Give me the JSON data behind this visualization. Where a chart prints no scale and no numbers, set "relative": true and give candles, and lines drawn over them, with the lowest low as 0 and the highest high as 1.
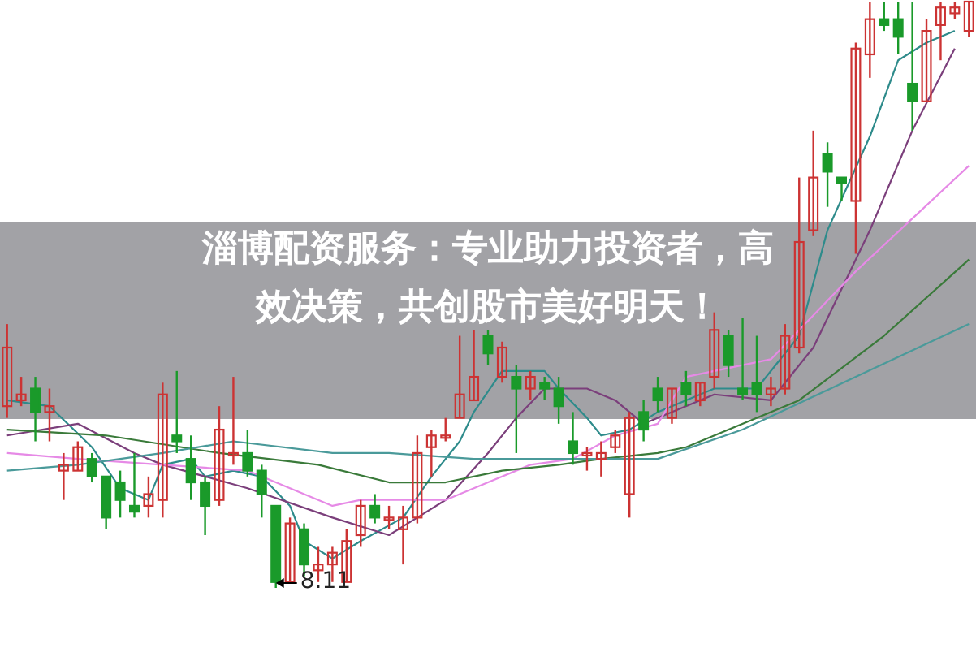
{
  "chart_data": {
    "type": "candlestick",
    "relative": true,
    "title": "淄博配资服务：专业助力投资者，高效决策，共创股市美好明天！",
    "annotations": [
      "8.11"
    ],
    "categories": [
      null,
      null,
      null,
      null,
      null,
      null,
      null,
      null,
      null,
      null,
      null,
      null,
      null,
      null,
      null,
      null,
      null,
      null,
      null,
      null,
      null,
      null,
      null,
      null,
      null,
      null,
      null,
      null,
      null,
      null,
      null,
      null,
      null,
      null,
      null,
      null,
      null,
      null,
      null,
      null,
      null,
      null,
      null,
      null,
      null,
      null,
      null,
      null,
      null,
      null,
      null,
      null,
      null,
      null,
      null,
      null,
      null,
      null,
      null,
      null,
      null,
      null,
      null,
      null,
      null,
      null,
      null,
      null,
      null
    ],
    "ohlc": [
      [
        0.31,
        0.45,
        0.29,
        0.41
      ],
      [
        0.32,
        0.36,
        0.31,
        0.33
      ],
      [
        0.34,
        0.36,
        0.25,
        0.3
      ],
      [
        0.3,
        0.34,
        0.25,
        0.31
      ],
      [
        0.2,
        0.23,
        0.15,
        0.21
      ],
      [
        0.2,
        0.25,
        0.2,
        0.24
      ],
      [
        0.22,
        0.23,
        0.18,
        0.19
      ],
      [
        0.19,
        0.19,
        0.1,
        0.12
      ],
      [
        0.18,
        0.2,
        0.12,
        0.15
      ],
      [
        0.14,
        0.23,
        0.12,
        0.13
      ],
      [
        0.14,
        0.19,
        0.12,
        0.16
      ],
      [
        0.15,
        0.35,
        0.12,
        0.33
      ],
      [
        0.26,
        0.37,
        0.23,
        0.25
      ],
      [
        0.22,
        0.26,
        0.15,
        0.18
      ],
      [
        0.18,
        0.19,
        0.09,
        0.14
      ],
      [
        0.15,
        0.31,
        0.14,
        0.27
      ],
      [
        0.23,
        0.36,
        0.21,
        0.23
      ],
      [
        0.23,
        0.27,
        0.19,
        0.2
      ],
      [
        0.2,
        0.21,
        0.12,
        0.16
      ],
      [
        0.14,
        0.14,
        0,
        0.01
      ],
      [
        0.01,
        0.12,
        0.01,
        0.11
      ],
      [
        0.1,
        0.11,
        0.02,
        0.04
      ],
      [
        0.03,
        0.07,
        0.01,
        0.04
      ],
      [
        0.04,
        0.07,
        0.01,
        0.06
      ],
      [
        0.01,
        0.1,
        0.01,
        0.08
      ],
      [
        0.09,
        0.15,
        0.07,
        0.14
      ],
      [
        0.14,
        0.16,
        0.11,
        0.12
      ],
      [
        0.12,
        0.14,
        0.1,
        0.12
      ],
      [
        0.1,
        0.14,
        0.04,
        0.12
      ],
      [
        0.12,
        0.26,
        0.11,
        0.23
      ],
      [
        0.24,
        0.27,
        0.19,
        0.26
      ],
      [
        0.26,
        0.29,
        0.25,
        0.26
      ],
      [
        0.29,
        0.43,
        0.29,
        0.33
      ],
      [
        0.32,
        0.44,
        0.32,
        0.36
      ],
      [
        0.43,
        0.44,
        0.38,
        0.4
      ],
      [
        0.36,
        0.42,
        0.35,
        0.41
      ],
      [
        0.36,
        0.38,
        0.23,
        0.34
      ],
      [
        0.34,
        0.37,
        0.32,
        0.36
      ],
      [
        0.35,
        0.36,
        0.32,
        0.34
      ],
      [
        0.34,
        0.36,
        0.28,
        0.31
      ],
      [
        0.25,
        0.3,
        0.21,
        0.23
      ],
      [
        0.23,
        0.24,
        0.2,
        0.23
      ],
      [
        0.22,
        0.25,
        0.19,
        0.23
      ],
      [
        0.24,
        0.27,
        0.23,
        0.26
      ],
      [
        0.16,
        0.3,
        0.12,
        0.29
      ],
      [
        0.3,
        0.32,
        0.25,
        0.27
      ],
      [
        0.34,
        0.36,
        0.3,
        0.32
      ],
      [
        0.29,
        0.34,
        0.28,
        0.34
      ],
      [
        0.35,
        0.37,
        0.31,
        0.33
      ],
      [
        0.32,
        0.35,
        0.31,
        0.35
      ],
      [
        0.36,
        0.47,
        0.34,
        0.44
      ],
      [
        0.43,
        0.44,
        0.36,
        0.38
      ],
      [
        0.34,
        0.46,
        0.32,
        0.33
      ],
      [
        0.35,
        0.43,
        0.3,
        0.33
      ],
      [
        0.33,
        0.36,
        0.31,
        0.34
      ],
      [
        0.34,
        0.45,
        0.33,
        0.43
      ],
      [
        0.41,
        0.7,
        0.4,
        0.59
      ],
      [
        0.61,
        0.78,
        0.6,
        0.7
      ],
      [
        0.74,
        0.76,
        0.65,
        0.71
      ],
      [
        0.7,
        0.7,
        0.66,
        0.69
      ],
      [
        0.66,
        0.93,
        0.57,
        0.92
      ],
      [
        0.91,
        1,
        0.87,
        0.97
      ],
      [
        0.97,
        1,
        0.95,
        0.96
      ],
      [
        0.97,
        1,
        0.91,
        0.94
      ],
      [
        0.86,
        1,
        0.78,
        0.83
      ],
      [
        0.83,
        0.97,
        0.83,
        0.95
      ],
      [
        0.96,
        1,
        0.9,
        0.99
      ],
      [
        0.98,
        1,
        0.97,
        0.99
      ],
      [
        0.95,
        1,
        0.94,
        1
      ]
    ],
    "series": [
      {
        "type": "line",
        "color": "#2e8b8b",
        "values": [
          0.32,
          null,
          null,
          0.31,
          null,
          null,
          0.24,
          null,
          0.17,
          null,
          0.15,
          0.21,
          null,
          0.22,
          0.19,
          null,
          0.2,
          null,
          0.19,
          null,
          0.14,
          0.08,
          null,
          0.05,
          null,
          0.08,
          null,
          null,
          0.12,
          null,
          0.19,
          null,
          0.25,
          0.3,
          null,
          0.37,
          null,
          null,
          0.37,
          0.34,
          null,
          0.29,
          0.26,
          null,
          0.27,
          null,
          0.3,
          null,
          null,
          null,
          0.34,
          null,
          null,
          0.34,
          null,
          null,
          0.43,
          null,
          0.61,
          null,
          null,
          0.77,
          null,
          0.9,
          null,
          0.93,
          null,
          0.95,
          null
        ]
      },
      {
        "type": "line",
        "color": "#7b3f7b",
        "values": [
          0.26,
          null,
          null,
          null,
          null,
          0.28,
          null,
          null,
          null,
          0.23,
          null,
          0.21,
          null,
          null,
          null,
          null,
          null,
          0.17,
          null,
          null,
          null,
          null,
          null,
          0.12,
          null,
          null,
          null,
          0.09,
          null,
          0.12,
          null,
          0.15,
          null,
          null,
          0.23,
          null,
          0.29,
          null,
          0.34,
          null,
          null,
          0.34,
          null,
          0.32,
          null,
          0.28,
          null,
          null,
          null,
          null,
          0.33,
          null,
          null,
          null,
          0.32,
          null,
          null,
          0.41,
          null,
          null,
          null,
          0.61,
          null,
          null,
          0.78,
          null,
          null,
          0.92,
          null
        ]
      },
      {
        "type": "line",
        "color": "#e68ae6",
        "values": [
          0.23,
          null,
          null,
          null,
          null,
          0.22,
          null,
          null,
          null,
          null,
          null,
          0.21,
          null,
          null,
          null,
          null,
          null,
          0.2,
          null,
          null,
          null,
          null,
          null,
          0.14,
          null,
          0.15,
          null,
          null,
          null,
          0.15,
          null,
          0.15,
          null,
          null,
          0.18,
          null,
          null,
          0.21,
          null,
          null,
          0.22,
          null,
          null,
          0.26,
          null,
          null,
          0.28,
          null,
          0.36,
          null,
          null,
          null,
          null,
          null,
          0.39,
          null,
          null,
          null,
          null,
          null,
          0.54,
          null,
          null,
          null,
          0.63,
          null,
          null,
          null,
          0.72
        ]
      },
      {
        "type": "line",
        "color": "#3a7a3a",
        "values": [
          0.27,
          null,
          null,
          null,
          null,
          null,
          null,
          0.26,
          null,
          null,
          null,
          null,
          null,
          null,
          null,
          0.23,
          null,
          null,
          null,
          null,
          null,
          null,
          0.21,
          null,
          null,
          null,
          null,
          0.18,
          null,
          null,
          null,
          0.18,
          null,
          null,
          null,
          0.2,
          null,
          null,
          null,
          0.21,
          null,
          null,
          0.22,
          null,
          null,
          null,
          0.23,
          null,
          0.24,
          null,
          null,
          null,
          null,
          null,
          null,
          null,
          0.32,
          null,
          null,
          null,
          null,
          null,
          0.43,
          null,
          null,
          null,
          null,
          null,
          0.56
        ]
      },
      {
        "type": "line",
        "color": "#4a9a9a",
        "values": [
          0.2,
          null,
          null,
          null,
          null,
          0.21,
          null,
          null,
          null,
          null,
          null,
          0.23,
          null,
          null,
          null,
          null,
          0.25,
          null,
          null,
          null,
          null,
          null,
          null,
          0.23,
          null,
          null,
          null,
          0.23,
          null,
          null,
          null,
          null,
          null,
          0.22,
          null,
          null,
          null,
          null,
          null,
          0.22,
          null,
          null,
          null,
          null,
          null,
          null,
          0.22,
          null,
          null,
          null,
          null,
          null,
          0.27,
          null,
          null,
          null,
          null,
          null,
          null,
          null,
          0.36,
          null,
          null,
          null,
          null,
          null,
          null,
          null,
          0.45
        ]
      }
    ]
  }
}
